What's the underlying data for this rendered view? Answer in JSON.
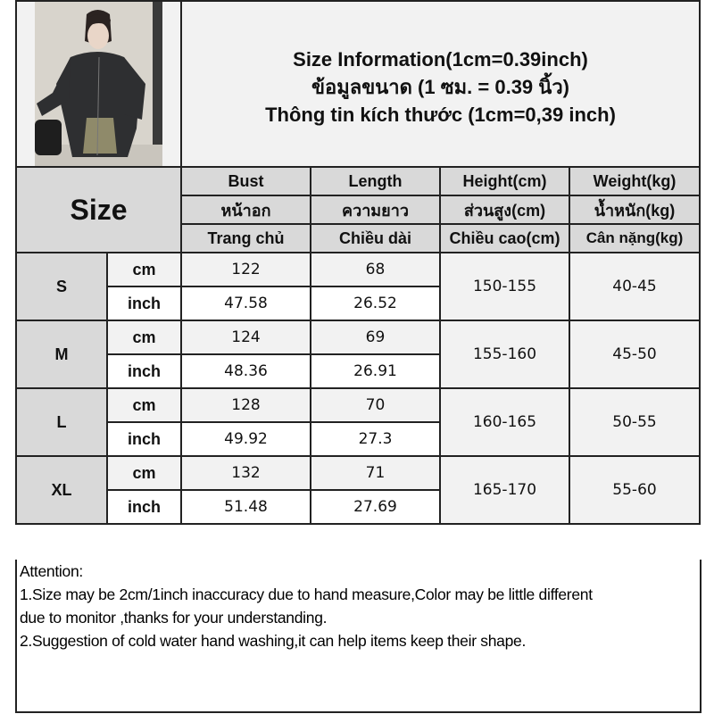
{
  "title_lines": [
    "Size Information(1cm=0.39inch)",
    "ข้อมูลขนาด (1 ซม. = 0.39 นิ้ว)",
    "Thông tin kích thước (1cm=0,39 inch)"
  ],
  "size_label": "Size",
  "headers": [
    [
      "Bust",
      "Length",
      "Height(cm)",
      "Weight(kg)"
    ],
    [
      "หน้าอก",
      "ความยาว",
      "ส่วนสูง(cm)",
      "น้ำหนัก(kg)"
    ],
    [
      "Trang chủ",
      "Chiều dài",
      "Chiều cao(cm)",
      "Cân nặng(kg)"
    ]
  ],
  "units": [
    "cm",
    "inch"
  ],
  "rows": [
    {
      "size": "S",
      "cm": [
        "122",
        "68"
      ],
      "inch": [
        "47.58",
        "26.52"
      ],
      "height": "150-155",
      "weight": "40-45"
    },
    {
      "size": "M",
      "cm": [
        "124",
        "69"
      ],
      "inch": [
        "48.36",
        "26.91"
      ],
      "height": "155-160",
      "weight": "45-50"
    },
    {
      "size": "L",
      "cm": [
        "128",
        "70"
      ],
      "inch": [
        "49.92",
        "27.3"
      ],
      "height": "160-165",
      "weight": "50-55"
    },
    {
      "size": "XL",
      "cm": [
        "132",
        "71"
      ],
      "inch": [
        "51.48",
        "27.69"
      ],
      "height": "165-170",
      "weight": "55-60"
    }
  ],
  "attention": [
    "Attention:",
    "1.Size may be 2cm/1inch inaccuracy due to hand measure,Color may be little different",
    "due to monitor ,thanks for your understanding.",
    "2.Suggestion of cold water hand washing,it can help items keep their shape."
  ],
  "colors": {
    "header_bg": "#d9d9d9",
    "light_bg": "#f2f2f2",
    "border": "#222222"
  }
}
